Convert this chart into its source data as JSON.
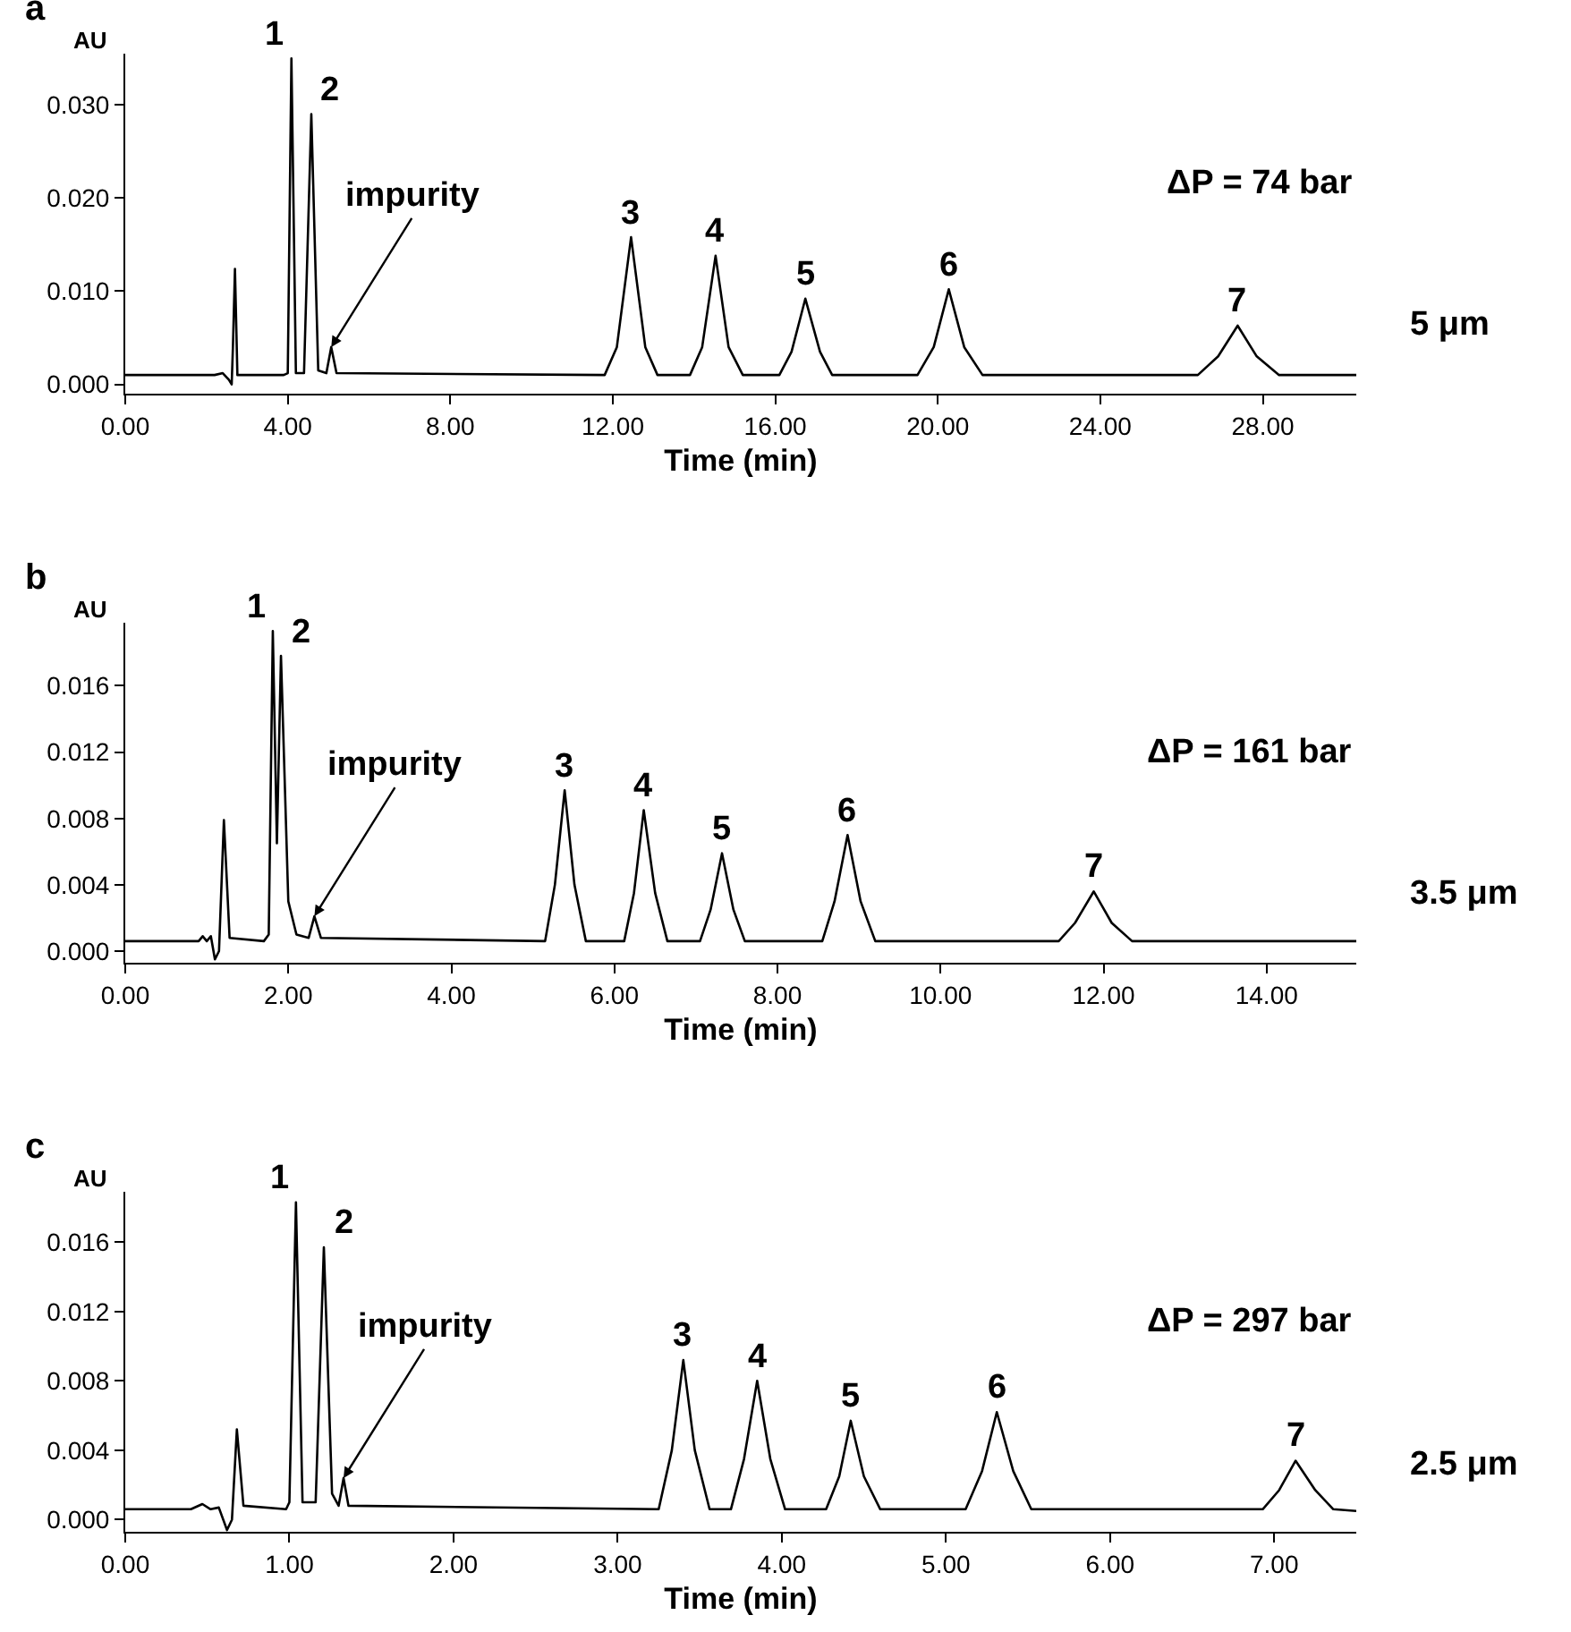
{
  "chart_data": [
    {
      "type": "line",
      "title": "a",
      "xlabel": "Time (min)",
      "ylabel": "AU",
      "grid": false,
      "marker": "none",
      "line_style": "solid",
      "xlim": [
        0,
        30.3
      ],
      "xticks": [
        {
          "value": 0,
          "label": "0.00"
        },
        {
          "value": 4,
          "label": "4.00"
        },
        {
          "value": 8,
          "label": "8.00"
        },
        {
          "value": 12,
          "label": "12.00"
        },
        {
          "value": 16,
          "label": "16.00"
        },
        {
          "value": 20,
          "label": "20.00"
        },
        {
          "value": 24,
          "label": "24.00"
        },
        {
          "value": 28,
          "label": "28.00"
        }
      ],
      "ylim": [
        -0.001,
        0.0355
      ],
      "yticks": [
        {
          "value": 0,
          "label": "0.000"
        },
        {
          "value": 0.01,
          "label": "0.010"
        },
        {
          "value": 0.02,
          "label": "0.020"
        },
        {
          "value": 0.03,
          "label": "0.030"
        }
      ],
      "series": [
        {
          "color": "#000000",
          "x": [
            0,
            2.2,
            2.4,
            2.55,
            2.62,
            2.65,
            2.7,
            2.76,
            3.9,
            4.0,
            4.09,
            4.2,
            4.4,
            4.58,
            4.75,
            4.95,
            5.07,
            5.2,
            11.8,
            12.1,
            12.45,
            12.8,
            13.1,
            13.9,
            14.2,
            14.53,
            14.85,
            15.2,
            16.1,
            16.4,
            16.74,
            17.1,
            17.4,
            19.5,
            19.9,
            20.27,
            20.65,
            21.1,
            26.4,
            26.9,
            27.38,
            27.85,
            28.4,
            30.3
          ],
          "values": [
            0.001,
            0.001,
            0.0012,
            0.0005,
            0.0,
            0.004,
            0.0124,
            0.001,
            0.001,
            0.0012,
            0.035,
            0.0012,
            0.0012,
            0.029,
            0.0015,
            0.0012,
            0.004,
            0.0012,
            0.001,
            0.004,
            0.0158,
            0.004,
            0.001,
            0.001,
            0.004,
            0.0138,
            0.004,
            0.001,
            0.001,
            0.0035,
            0.0092,
            0.0035,
            0.001,
            0.001,
            0.004,
            0.0102,
            0.004,
            0.001,
            0.001,
            0.003,
            0.0063,
            0.003,
            0.001,
            0.001
          ]
        }
      ],
      "annotations": [
        {
          "text": "1",
          "x": 4.09,
          "y": 0.035
        },
        {
          "text": "2",
          "x": 4.58,
          "y": 0.029
        },
        {
          "text": "impurity",
          "x": 5.07,
          "y": 0.004
        },
        {
          "text": "3",
          "x": 12.45,
          "y": 0.0158
        },
        {
          "text": "4",
          "x": 14.53,
          "y": 0.0138
        },
        {
          "text": "5",
          "x": 16.74,
          "y": 0.0092
        },
        {
          "text": "6",
          "x": 20.27,
          "y": 0.0102
        },
        {
          "text": "7",
          "x": 27.38,
          "y": 0.0063
        },
        "ΔP = 74 bar",
        "5 μm"
      ]
    },
    {
      "type": "line",
      "title": "b",
      "xlabel": "Time (min)",
      "ylabel": "AU",
      "grid": false,
      "marker": "none",
      "line_style": "solid",
      "xlim": [
        0,
        15.1
      ],
      "xticks": [
        {
          "value": 0,
          "label": "0.00"
        },
        {
          "value": 2,
          "label": "2.00"
        },
        {
          "value": 4,
          "label": "4.00"
        },
        {
          "value": 6,
          "label": "6.00"
        },
        {
          "value": 8,
          "label": "8.00"
        },
        {
          "value": 10,
          "label": "10.00"
        },
        {
          "value": 12,
          "label": "12.00"
        },
        {
          "value": 14,
          "label": "14.00"
        }
      ],
      "ylim": [
        -0.0007,
        0.0198
      ],
      "yticks": [
        {
          "value": 0,
          "label": "0.000"
        },
        {
          "value": 0.004,
          "label": "0.004"
        },
        {
          "value": 0.008,
          "label": "0.008"
        },
        {
          "value": 0.012,
          "label": "0.012"
        },
        {
          "value": 0.016,
          "label": "0.016"
        }
      ],
      "series": [
        {
          "color": "#000000",
          "x": [
            0,
            0.9,
            0.95,
            1.0,
            1.05,
            1.1,
            1.15,
            1.21,
            1.28,
            1.7,
            1.76,
            1.81,
            1.86,
            1.91,
            2.0,
            2.1,
            2.25,
            2.32,
            2.4,
            5.15,
            5.27,
            5.39,
            5.51,
            5.65,
            6.12,
            6.24,
            6.36,
            6.5,
            6.65,
            7.05,
            7.18,
            7.32,
            7.46,
            7.6,
            8.55,
            8.7,
            8.86,
            9.02,
            9.2,
            11.45,
            11.65,
            11.88,
            12.1,
            12.35,
            15.1
          ],
          "values": [
            0.0006,
            0.0006,
            0.0009,
            0.0006,
            0.0009,
            -0.0005,
            0.0,
            0.0079,
            0.0008,
            0.0006,
            0.001,
            0.0193,
            0.0065,
            0.0178,
            0.003,
            0.001,
            0.0008,
            0.0021,
            0.0008,
            0.0006,
            0.004,
            0.0097,
            0.004,
            0.0006,
            0.0006,
            0.0035,
            0.0085,
            0.0035,
            0.0006,
            0.0006,
            0.0025,
            0.0059,
            0.0025,
            0.0006,
            0.0006,
            0.003,
            0.007,
            0.003,
            0.0006,
            0.0006,
            0.0017,
            0.0036,
            0.0017,
            0.0006,
            0.0006
          ]
        }
      ],
      "annotations": [
        {
          "text": "1",
          "x": 1.81,
          "y": 0.0193
        },
        {
          "text": "2",
          "x": 1.91,
          "y": 0.0178
        },
        {
          "text": "impurity",
          "x": 2.32,
          "y": 0.0021
        },
        {
          "text": "3",
          "x": 5.39,
          "y": 0.0097
        },
        {
          "text": "4",
          "x": 6.36,
          "y": 0.0085
        },
        {
          "text": "5",
          "x": 7.32,
          "y": 0.0059
        },
        {
          "text": "6",
          "x": 8.86,
          "y": 0.007
        },
        {
          "text": "7",
          "x": 11.88,
          "y": 0.0036
        },
        "ΔP = 161 bar",
        "3.5 μm"
      ]
    },
    {
      "type": "line",
      "title": "c",
      "xlabel": "Time (min)",
      "ylabel": "AU",
      "grid": false,
      "marker": "none",
      "line_style": "solid",
      "xlim": [
        0,
        7.5
      ],
      "xticks": [
        {
          "value": 0,
          "label": "0.00"
        },
        {
          "value": 1,
          "label": "1.00"
        },
        {
          "value": 2,
          "label": "2.00"
        },
        {
          "value": 3,
          "label": "3.00"
        },
        {
          "value": 4,
          "label": "4.00"
        },
        {
          "value": 5,
          "label": "5.00"
        },
        {
          "value": 6,
          "label": "6.00"
        },
        {
          "value": 7,
          "label": "7.00"
        }
      ],
      "ylim": [
        -0.0007,
        0.0189
      ],
      "yticks": [
        {
          "value": 0,
          "label": "0.000"
        },
        {
          "value": 0.004,
          "label": "0.004"
        },
        {
          "value": 0.008,
          "label": "0.008"
        },
        {
          "value": 0.012,
          "label": "0.012"
        },
        {
          "value": 0.016,
          "label": "0.016"
        }
      ],
      "series": [
        {
          "color": "#000000",
          "x": [
            0,
            0.4,
            0.47,
            0.52,
            0.57,
            0.62,
            0.65,
            0.68,
            0.72,
            0.98,
            1.0,
            1.04,
            1.08,
            1.16,
            1.21,
            1.26,
            1.3,
            1.33,
            1.36,
            3.25,
            3.33,
            3.4,
            3.47,
            3.56,
            3.69,
            3.77,
            3.85,
            3.93,
            4.02,
            4.27,
            4.35,
            4.42,
            4.5,
            4.6,
            5.12,
            5.22,
            5.31,
            5.41,
            5.52,
            6.93,
            7.03,
            7.13,
            7.25,
            7.36,
            7.5
          ],
          "values": [
            0.0006,
            0.0006,
            0.0009,
            0.0006,
            0.0007,
            -0.0006,
            0.0,
            0.0052,
            0.0008,
            0.0006,
            0.001,
            0.0183,
            0.001,
            0.001,
            0.0157,
            0.0015,
            0.0008,
            0.0024,
            0.0008,
            0.0006,
            0.004,
            0.0092,
            0.004,
            0.0006,
            0.0006,
            0.0035,
            0.008,
            0.0035,
            0.0006,
            0.0006,
            0.0025,
            0.0057,
            0.0025,
            0.0006,
            0.0006,
            0.0028,
            0.0062,
            0.0028,
            0.0006,
            0.0006,
            0.0017,
            0.0034,
            0.0017,
            0.0006,
            0.0005
          ]
        }
      ],
      "annotations": [
        {
          "text": "1",
          "x": 1.04,
          "y": 0.0183
        },
        {
          "text": "2",
          "x": 1.21,
          "y": 0.0157
        },
        {
          "text": "impurity",
          "x": 1.33,
          "y": 0.0024
        },
        {
          "text": "3",
          "x": 3.4,
          "y": 0.0092
        },
        {
          "text": "4",
          "x": 3.85,
          "y": 0.008
        },
        {
          "text": "5",
          "x": 4.42,
          "y": 0.0057
        },
        {
          "text": "6",
          "x": 5.31,
          "y": 0.0062
        },
        {
          "text": "7",
          "x": 7.13,
          "y": 0.0034
        },
        "ΔP = 297 bar",
        "2.5 μm"
      ]
    }
  ]
}
